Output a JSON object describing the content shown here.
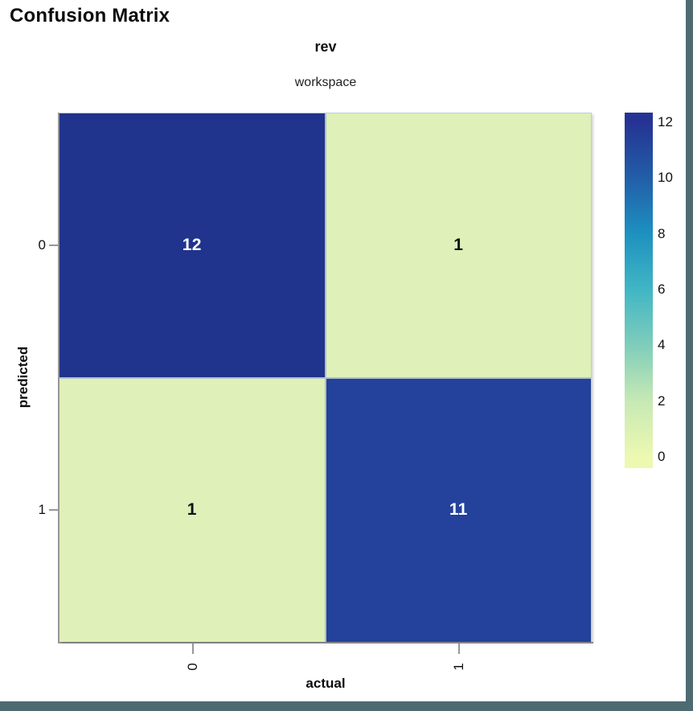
{
  "panel": {
    "title": "Confusion Matrix"
  },
  "header": {
    "run_name": "rev",
    "subtitle": "workspace"
  },
  "window": {
    "edge_color": "#4e6b72",
    "background": "#ffffff"
  },
  "axis_color": "#979797",
  "chart_data": {
    "type": "heatmap",
    "title": "Confusion Matrix",
    "run": "rev",
    "group": "workspace",
    "xlabel": "actual",
    "ylabel": "predicted",
    "x_categories": [
      "0",
      "1"
    ],
    "y_categories": [
      "0",
      "1"
    ],
    "matrix": [
      [
        12,
        1
      ],
      [
        1,
        11
      ]
    ],
    "cell_colors": [
      [
        "#20338d",
        "#dff0b8"
      ],
      [
        "#dff0b8",
        "#24419b"
      ]
    ],
    "cell_text_colors": [
      [
        "#ffffff",
        "#111111"
      ],
      [
        "#111111",
        "#ffffff"
      ]
    ],
    "grid": false,
    "legend_position": "right",
    "colorbar": {
      "min": 0,
      "max": 12,
      "ticks": [
        12,
        10,
        8,
        6,
        4,
        2,
        0
      ],
      "colorscale": [
        "#253494",
        "#225ea8",
        "#1d91c0",
        "#41b6c4",
        "#7fcdbb",
        "#c7e9b4",
        "#edf8b1"
      ]
    }
  }
}
